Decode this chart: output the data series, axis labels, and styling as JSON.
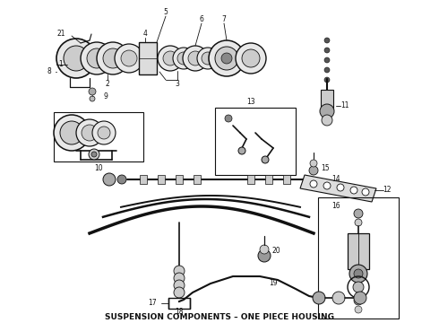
{
  "title": "SUSPENSION COMPONENTS – ONE PIECE HOUSING",
  "title_fontsize": 6.5,
  "bg_color": "#ffffff",
  "fig_width": 4.9,
  "fig_height": 3.6,
  "dpi": 100,
  "line_color": "#111111"
}
